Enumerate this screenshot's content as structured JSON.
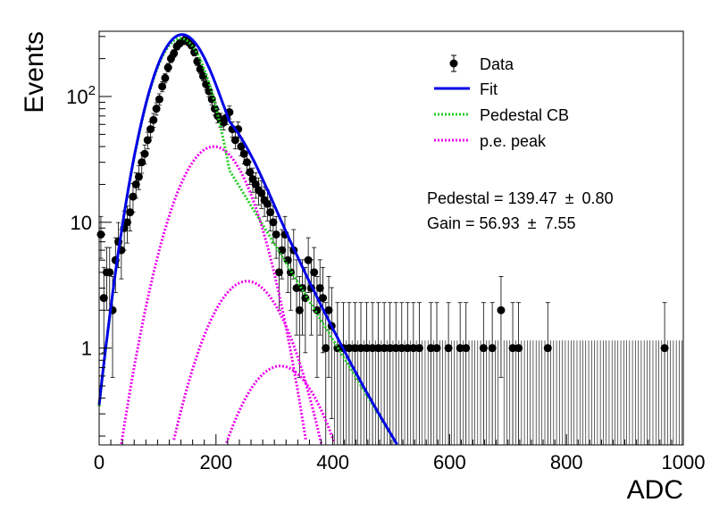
{
  "chart_data": {
    "type": "scatter",
    "xlabel": "ADC",
    "ylabel": "Events",
    "xlim": [
      0,
      1000
    ],
    "ylim": [
      0.17,
      330
    ],
    "y_scale": "log",
    "grid": false,
    "legend_placement": "top-right",
    "x_ticks": [
      {
        "value": 0,
        "label": "0"
      },
      {
        "value": 200,
        "label": "200"
      },
      {
        "value": 400,
        "label": "400"
      },
      {
        "value": 600,
        "label": "600"
      },
      {
        "value": 800,
        "label": "800"
      },
      {
        "value": 1000,
        "label": "1000"
      }
    ],
    "y_ticks": [
      {
        "value": 1,
        "label": "1"
      },
      {
        "value": 10,
        "label": "10"
      },
      {
        "value": 100,
        "label": "10",
        "sup": "2"
      }
    ],
    "legend": [
      {
        "label": "Data",
        "style": "marker",
        "color": "#000000"
      },
      {
        "label": "Fit",
        "style": "solid",
        "color": "#0000e6"
      },
      {
        "label": "Pedestal CB",
        "style": "dotted",
        "color": "#22cc22"
      },
      {
        "label": "p.e. peak",
        "style": "dotted",
        "color": "#ee00ee"
      }
    ],
    "annotations": {
      "pedestal": "Pedestal = 139.47",
      "pedestal_err": "0.80",
      "gain": "Gain = 56.93",
      "gain_err": "7.55",
      "pm_symbol": "±"
    },
    "data_points": [
      {
        "x": 3,
        "y": 8
      },
      {
        "x": 8,
        "y": 2.5
      },
      {
        "x": 13,
        "y": 4
      },
      {
        "x": 18,
        "y": 4
      },
      {
        "x": 23,
        "y": 2
      },
      {
        "x": 28,
        "y": 5
      },
      {
        "x": 33,
        "y": 7
      },
      {
        "x": 38,
        "y": 6
      },
      {
        "x": 43,
        "y": 9
      },
      {
        "x": 48,
        "y": 10
      },
      {
        "x": 53,
        "y": 12
      },
      {
        "x": 58,
        "y": 16
      },
      {
        "x": 63,
        "y": 20
      },
      {
        "x": 68,
        "y": 23
      },
      {
        "x": 73,
        "y": 30
      },
      {
        "x": 78,
        "y": 35
      },
      {
        "x": 83,
        "y": 45
      },
      {
        "x": 88,
        "y": 55
      },
      {
        "x": 93,
        "y": 65
      },
      {
        "x": 98,
        "y": 80
      },
      {
        "x": 103,
        "y": 95
      },
      {
        "x": 108,
        "y": 120
      },
      {
        "x": 113,
        "y": 140
      },
      {
        "x": 118,
        "y": 170
      },
      {
        "x": 123,
        "y": 200
      },
      {
        "x": 128,
        "y": 220
      },
      {
        "x": 133,
        "y": 250
      },
      {
        "x": 138,
        "y": 265
      },
      {
        "x": 143,
        "y": 275
      },
      {
        "x": 148,
        "y": 285
      },
      {
        "x": 153,
        "y": 270
      },
      {
        "x": 158,
        "y": 255
      },
      {
        "x": 163,
        "y": 225
      },
      {
        "x": 168,
        "y": 190
      },
      {
        "x": 173,
        "y": 165
      },
      {
        "x": 178,
        "y": 145
      },
      {
        "x": 183,
        "y": 125
      },
      {
        "x": 188,
        "y": 110
      },
      {
        "x": 193,
        "y": 95
      },
      {
        "x": 198,
        "y": 80
      },
      {
        "x": 203,
        "y": 70
      },
      {
        "x": 208,
        "y": 65
      },
      {
        "x": 213,
        "y": 62
      },
      {
        "x": 218,
        "y": 68
      },
      {
        "x": 223,
        "y": 75
      },
      {
        "x": 228,
        "y": 55
      },
      {
        "x": 233,
        "y": 45
      },
      {
        "x": 238,
        "y": 55
      },
      {
        "x": 243,
        "y": 40
      },
      {
        "x": 248,
        "y": 35
      },
      {
        "x": 253,
        "y": 30
      },
      {
        "x": 258,
        "y": 25
      },
      {
        "x": 263,
        "y": 22
      },
      {
        "x": 268,
        "y": 20
      },
      {
        "x": 273,
        "y": 18
      },
      {
        "x": 278,
        "y": 17
      },
      {
        "x": 283,
        "y": 15
      },
      {
        "x": 288,
        "y": 14
      },
      {
        "x": 293,
        "y": 12
      },
      {
        "x": 298,
        "y": 10
      },
      {
        "x": 303,
        "y": 8
      },
      {
        "x": 308,
        "y": 4
      },
      {
        "x": 313,
        "y": 6
      },
      {
        "x": 318,
        "y": 8
      },
      {
        "x": 323,
        "y": 5
      },
      {
        "x": 328,
        "y": 4
      },
      {
        "x": 333,
        "y": 6
      },
      {
        "x": 338,
        "y": 3
      },
      {
        "x": 343,
        "y": 2
      },
      {
        "x": 348,
        "y": 3
      },
      {
        "x": 353,
        "y": 2.5
      },
      {
        "x": 358,
        "y": 5
      },
      {
        "x": 363,
        "y": 3
      },
      {
        "x": 368,
        "y": 4
      },
      {
        "x": 373,
        "y": 2
      },
      {
        "x": 378,
        "y": 3
      },
      {
        "x": 383,
        "y": 2.5
      },
      {
        "x": 388,
        "y": 1
      },
      {
        "x": 393,
        "y": 2
      },
      {
        "x": 398,
        "y": 1.5
      },
      {
        "x": 408,
        "y": 1
      },
      {
        "x": 418,
        "y": 1
      },
      {
        "x": 428,
        "y": 1
      },
      {
        "x": 438,
        "y": 1
      },
      {
        "x": 448,
        "y": 1
      },
      {
        "x": 458,
        "y": 1
      },
      {
        "x": 468,
        "y": 1
      },
      {
        "x": 478,
        "y": 1
      },
      {
        "x": 488,
        "y": 1
      },
      {
        "x": 498,
        "y": 1
      },
      {
        "x": 508,
        "y": 1
      },
      {
        "x": 518,
        "y": 1
      },
      {
        "x": 528,
        "y": 1
      },
      {
        "x": 538,
        "y": 1
      },
      {
        "x": 548,
        "y": 1
      },
      {
        "x": 568,
        "y": 1
      },
      {
        "x": 578,
        "y": 1
      },
      {
        "x": 598,
        "y": 1
      },
      {
        "x": 618,
        "y": 1
      },
      {
        "x": 628,
        "y": 1
      },
      {
        "x": 658,
        "y": 1
      },
      {
        "x": 673,
        "y": 1
      },
      {
        "x": 688,
        "y": 2
      },
      {
        "x": 708,
        "y": 1
      },
      {
        "x": 718,
        "y": 1
      },
      {
        "x": 768,
        "y": 1
      },
      {
        "x": 968,
        "y": 1
      }
    ],
    "empty_bin_error_upper": 1.15,
    "fit_model": {
      "pedestal_mean": 139.47,
      "pedestal_sigma": 38,
      "pedestal_amplitude": 290,
      "tail_slope_per_adc": 0.0175,
      "pe_peaks": [
        {
          "mean": 196.4,
          "sigma": 48,
          "amplitude": 40
        },
        {
          "mean": 253.3,
          "sigma": 52,
          "amplitude": 3.4
        },
        {
          "mean": 310.3,
          "sigma": 55,
          "amplitude": 0.72
        }
      ]
    }
  }
}
